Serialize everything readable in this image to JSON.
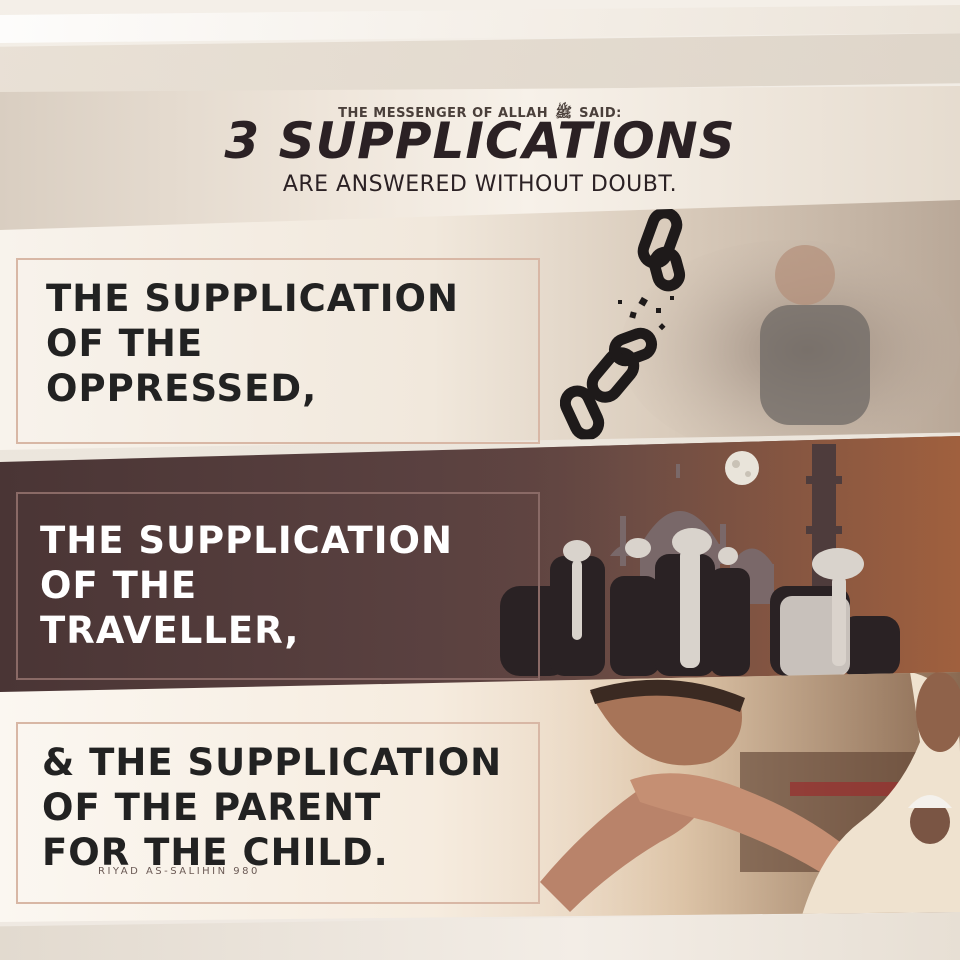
{
  "header": {
    "pre_title_before": "THE MESSENGER OF ALLAH",
    "seal_glyph": "ﷺ",
    "pre_title_after": "SAID:",
    "title": "3 SUPPLICATIONS",
    "subtitle": "ARE ANSWERED WITHOUT DOUBT."
  },
  "panels": [
    {
      "lines": [
        "THE SUPPLICATION",
        "OF THE",
        "OPPRESSED,"
      ],
      "image": "broken-chain-and-distressed-man"
    },
    {
      "lines": [
        "THE SUPPLICATION",
        "OF THE",
        "TRAVELLER,"
      ],
      "image": "travellers-at-mosque-moon"
    },
    {
      "lines": [
        "& THE SUPPLICATION",
        "OF THE PARENT",
        "FOR THE CHILD."
      ],
      "image": "son-kissing-parent-hand"
    }
  ],
  "source": "RIYAD AS-SALIHIN 980",
  "colors": {
    "title": "#2b2124",
    "accent_frame": "#d8b7a5",
    "dark_panel": "#4a3535"
  }
}
